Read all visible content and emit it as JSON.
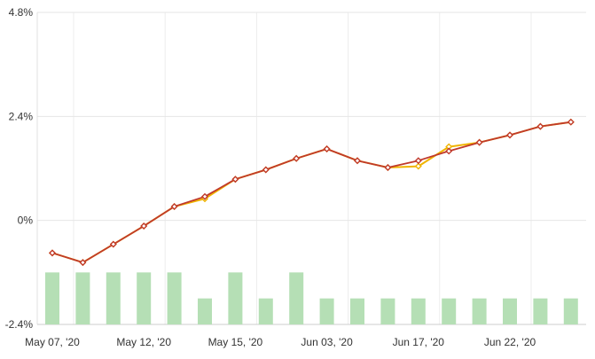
{
  "chart_data": {
    "type": "line",
    "y_axis": {
      "min": -2.4,
      "max": 4.8,
      "ticks": [
        {
          "value": 4.8,
          "label": "4.8%"
        },
        {
          "value": 2.4,
          "label": "2.4%"
        },
        {
          "value": 0,
          "label": "0%"
        },
        {
          "value": -2.4,
          "label": "-2.4%"
        }
      ]
    },
    "x_axis": {
      "labels": [
        "May 07, '20",
        "May 12, '20",
        "May 15, '20",
        "Jun 03, '20",
        "Jun 17, '20",
        "Jun 22, '20"
      ]
    },
    "series": [
      {
        "color": "#f0b400",
        "values": [
          -0.75,
          -0.97,
          -0.55,
          -0.13,
          0.32,
          0.5,
          0.95,
          1.17,
          1.43,
          1.65,
          1.38,
          1.22,
          1.25,
          1.7,
          1.8,
          1.97,
          2.17,
          2.27
        ]
      },
      {
        "color": "#c0392b",
        "values": [
          -0.75,
          -0.97,
          -0.55,
          -0.13,
          0.32,
          0.55,
          0.95,
          1.17,
          1.43,
          1.65,
          1.38,
          1.22,
          1.38,
          1.6,
          1.8,
          1.97,
          2.17,
          2.27
        ]
      }
    ],
    "bars": {
      "color": "#b5dfb5",
      "values": [
        -1.2,
        -1.2,
        -1.2,
        -1.2,
        -1.2,
        -1.8,
        -1.2,
        -1.8,
        -1.2,
        -1.8,
        -1.8,
        -1.8,
        -1.8,
        -1.8,
        -1.8,
        -1.8,
        -1.8,
        -1.8
      ]
    },
    "grid": true,
    "legend": "none"
  }
}
